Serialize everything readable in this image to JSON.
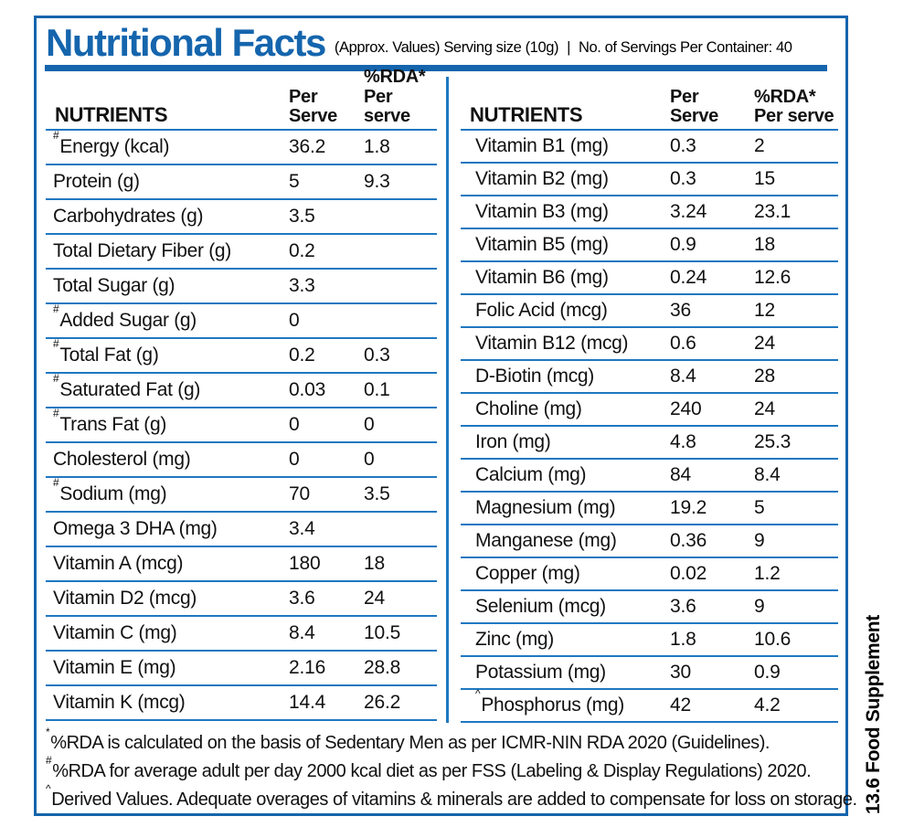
{
  "header": {
    "title": "Nutritional Facts",
    "subtitle_left": "(Approx. Values) Serving size (10g)",
    "separator": "|",
    "subtitle_right": "No. of Servings Per Container: 40"
  },
  "columns": {
    "nutrients": "NUTRIENTS",
    "per_line1": "Per",
    "per_line2": "Serve",
    "rda_line1": "%RDA*",
    "rda_line2": "Per serve"
  },
  "left_table": {
    "rows": [
      {
        "sup": "#",
        "name": "Energy (kcal)",
        "per": "36.2",
        "rda": "1.8"
      },
      {
        "sup": "",
        "name": "Protein (g)",
        "per": "5",
        "rda": "9.3"
      },
      {
        "sup": "",
        "name": "Carbohydrates (g)",
        "per": "3.5",
        "rda": ""
      },
      {
        "sup": "",
        "name": "Total Dietary Fiber (g)",
        "per": "0.2",
        "rda": ""
      },
      {
        "sup": "",
        "name": "Total Sugar (g)",
        "per": "3.3",
        "rda": ""
      },
      {
        "sup": "#",
        "name": "Added Sugar (g)",
        "per": "0",
        "rda": ""
      },
      {
        "sup": "#",
        "name": "Total Fat (g)",
        "per": "0.2",
        "rda": "0.3"
      },
      {
        "sup": "#",
        "name": "Saturated Fat (g)",
        "per": "0.03",
        "rda": "0.1"
      },
      {
        "sup": "#",
        "name": "Trans Fat (g)",
        "per": "0",
        "rda": "0"
      },
      {
        "sup": "",
        "name": "Cholesterol (mg)",
        "per": "0",
        "rda": "0"
      },
      {
        "sup": "#",
        "name": "Sodium (mg)",
        "per": "70",
        "rda": "3.5"
      },
      {
        "sup": "",
        "name": "Omega 3 DHA (mg)",
        "per": "3.4",
        "rda": ""
      },
      {
        "sup": "",
        "name": "Vitamin A (mcg)",
        "per": "180",
        "rda": "18"
      },
      {
        "sup": "",
        "name": "Vitamin D2 (mcg)",
        "per": "3.6",
        "rda": "24"
      },
      {
        "sup": "",
        "name": "Vitamin C (mg)",
        "per": "8.4",
        "rda": "10.5"
      },
      {
        "sup": "",
        "name": "Vitamin E (mg)",
        "per": "2.16",
        "rda": "28.8"
      },
      {
        "sup": "",
        "name": "Vitamin K (mcg)",
        "per": "14.4",
        "rda": "26.2"
      }
    ]
  },
  "right_table": {
    "rows": [
      {
        "sup": "",
        "name": "Vitamin B1 (mg)",
        "per": "0.3",
        "rda": "2"
      },
      {
        "sup": "",
        "name": "Vitamin B2 (mg)",
        "per": "0.3",
        "rda": "15"
      },
      {
        "sup": "",
        "name": "Vitamin B3 (mg)",
        "per": "3.24",
        "rda": "23.1"
      },
      {
        "sup": "",
        "name": "Vitamin B5 (mg)",
        "per": "0.9",
        "rda": "18"
      },
      {
        "sup": "",
        "name": "Vitamin B6 (mg)",
        "per": "0.24",
        "rda": "12.6"
      },
      {
        "sup": "",
        "name": "Folic Acid (mcg)",
        "per": "36",
        "rda": "12"
      },
      {
        "sup": "",
        "name": "Vitamin B12 (mcg)",
        "per": "0.6",
        "rda": "24"
      },
      {
        "sup": "",
        "name": "D-Biotin (mcg)",
        "per": "8.4",
        "rda": "28"
      },
      {
        "sup": "",
        "name": "Choline (mg)",
        "per": "240",
        "rda": "24"
      },
      {
        "sup": "",
        "name": "Iron (mg)",
        "per": "4.8",
        "rda": "25.3"
      },
      {
        "sup": "",
        "name": "Calcium (mg)",
        "per": "84",
        "rda": "8.4"
      },
      {
        "sup": "",
        "name": "Magnesium (mg)",
        "per": "19.2",
        "rda": "5"
      },
      {
        "sup": "",
        "name": "Manganese (mg)",
        "per": "0.36",
        "rda": "9"
      },
      {
        "sup": "",
        "name": "Copper (mg)",
        "per": "0.02",
        "rda": "1.2"
      },
      {
        "sup": "",
        "name": "Selenium (mcg)",
        "per": "3.6",
        "rda": "9"
      },
      {
        "sup": "",
        "name": "Zinc (mg)",
        "per": "1.8",
        "rda": "10.6"
      },
      {
        "sup": "",
        "name": "Potassium (mg)",
        "per": "30",
        "rda": "0.9"
      },
      {
        "sup": "^",
        "name": "Phosphorus (mg)",
        "per": "42",
        "rda": "4.2"
      }
    ]
  },
  "footnotes": [
    {
      "sup": "*",
      "text": "%RDA is calculated on the basis of Sedentary Men as per ICMR-NIN RDA 2020 (Guidelines)."
    },
    {
      "sup": "#",
      "text": "%RDA for average adult per day 2000 kcal diet as per FSS (Labeling & Display Regulations) 2020."
    },
    {
      "sup": "^",
      "text": "Derived Values. Adequate overages of vitamins & minerals are added to compensate for loss on storage."
    }
  ],
  "side_label": "13.6 Food Supplement",
  "colors": {
    "accent": "#1565ad",
    "rule": "#1f78c0",
    "ink": "#111111"
  }
}
